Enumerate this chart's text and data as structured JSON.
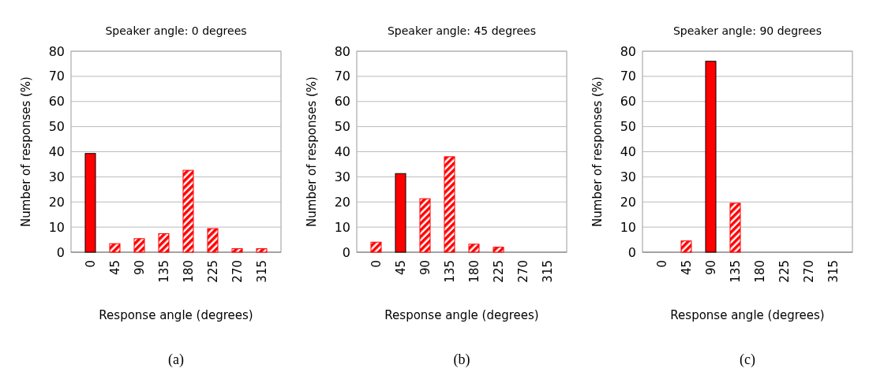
{
  "chart_data": [
    {
      "type": "bar",
      "title": "Speaker angle: 0 degrees",
      "xlabel": "Response angle (degrees)",
      "ylabel": "Number of responses (%)",
      "annotations": [
        "(a)"
      ],
      "categories": [
        "0",
        "45",
        "90",
        "135",
        "180",
        "225",
        "270",
        "315"
      ],
      "series": [
        {
          "color": "#ff0000",
          "values": [
            39.3,
            null,
            null,
            null,
            null,
            null,
            null,
            null
          ]
        },
        {
          "color": "#ff0000",
          "values": [
            null,
            3.4,
            5.4,
            7.4,
            32.6,
            9.4,
            1.4,
            1.4
          ]
        }
      ],
      "ylim": [
        0,
        80
      ],
      "yticks": [
        0,
        10,
        20,
        30,
        40,
        50,
        60,
        70,
        80
      ],
      "grid": "y"
    },
    {
      "type": "bar",
      "title": "Speaker angle: 45 degrees",
      "xlabel": "Response angle (degrees)",
      "ylabel": "Number of responses (%)",
      "annotations": [
        "(b)"
      ],
      "categories": [
        "0",
        "45",
        "90",
        "135",
        "180",
        "225",
        "270",
        "315"
      ],
      "series": [
        {
          "color": "#ff0000",
          "values": [
            null,
            31.3,
            null,
            null,
            null,
            null,
            null,
            null
          ]
        },
        {
          "color": "#ff0000",
          "values": [
            4,
            null,
            21.3,
            38,
            3.2,
            2,
            0,
            0
          ]
        }
      ],
      "ylim": [
        0,
        80
      ],
      "yticks": [
        0,
        10,
        20,
        30,
        40,
        50,
        60,
        70,
        80
      ],
      "grid": "y"
    },
    {
      "type": "bar",
      "title": "Speaker angle: 90 degrees",
      "xlabel": "Response angle (degrees)",
      "ylabel": "Number of responses (%)",
      "annotations": [
        "(c)"
      ],
      "categories": [
        "0",
        "45",
        "90",
        "135",
        "180",
        "225",
        "270",
        "315"
      ],
      "series": [
        {
          "color": "#ff0000",
          "values": [
            null,
            null,
            76,
            null,
            null,
            null,
            null,
            null
          ]
        },
        {
          "color": "#ff0000",
          "values": [
            0,
            4.5,
            null,
            19.5,
            0,
            0,
            0,
            0
          ]
        }
      ],
      "ylim": [
        0,
        80
      ],
      "yticks": [
        0,
        10,
        20,
        30,
        40,
        50,
        60,
        70,
        80
      ],
      "grid": "y"
    }
  ]
}
